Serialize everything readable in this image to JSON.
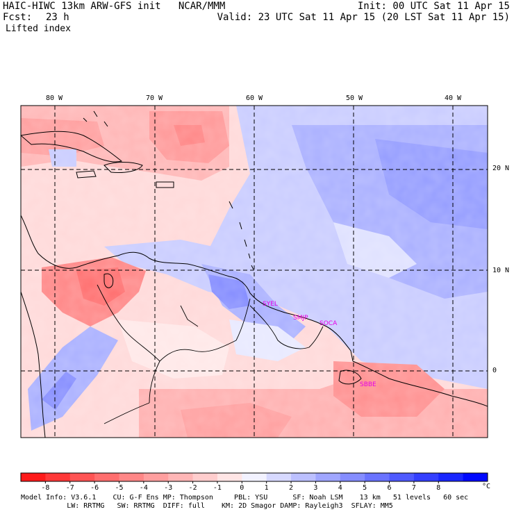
{
  "header": {
    "title_left": "HAIC-HIWC 13km ARW-GFS init   NCAR/MMM",
    "init": "Init: 00 UTC Sat 11 Apr 15",
    "fcst_label": "Fcst:",
    "fcst_value": "23 h",
    "valid": "Valid: 23 UTC Sat 11 Apr 15 (20 LST Sat 11 Apr 15)",
    "field_name": "Lifted index"
  },
  "map": {
    "longitude_labels": [
      "80 W",
      "70 W",
      "60 W",
      "50 W",
      "40 W"
    ],
    "latitude_labels": [
      "20 N",
      "10 N",
      "0"
    ],
    "stations": [
      "SYEL",
      "SMJP",
      "SOCA",
      "SBBE"
    ]
  },
  "colorbar": {
    "tick_labels": [
      "-8",
      "-7",
      "-6",
      "-5",
      "-4",
      "-3",
      "-2",
      "-1",
      "0",
      "1",
      "2",
      "3",
      "4",
      "5",
      "6",
      "7",
      "8"
    ],
    "unit": "°C",
    "colors": [
      "#ff1a1a",
      "#ff3838",
      "#ff5454",
      "#ff6e6e",
      "#ff8787",
      "#ff9f9f",
      "#ffb6b6",
      "#ffcdcd",
      "#ffe5e5",
      "#f2f2ff",
      "#d7d9ff",
      "#bcc0ff",
      "#a0a6ff",
      "#858dff",
      "#6a73ff",
      "#4f5aff",
      "#343fff",
      "#1926ff",
      "#0008ff"
    ]
  },
  "footer": {
    "line1": "Model Info: V3.6.1    CU: G-F Ens MP: Thompson     PBL: YSU      SF: Noah LSM    13 km   51 levels   60 sec",
    "line2": "           LW: RRTMG   SW: RRTMG  DIFF: full    KM: 2D Smagor DAMP: Rayleigh3  SFLAY: MM5"
  }
}
